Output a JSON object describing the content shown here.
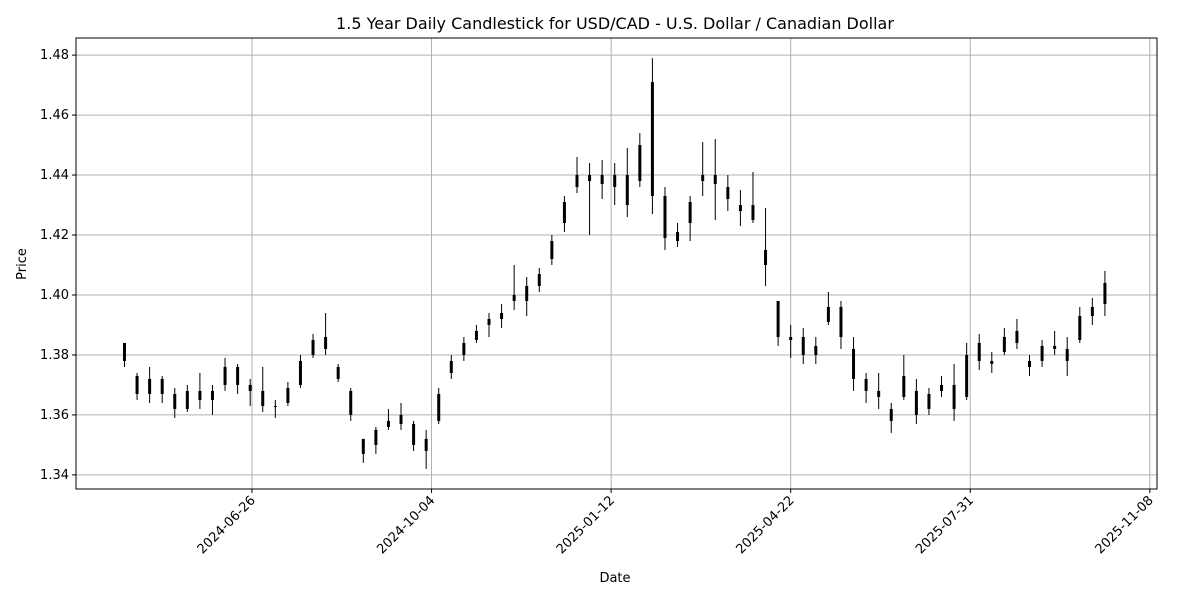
{
  "chart_data": {
    "type": "candlestick",
    "title": "1.5 Year Daily Candlestick for USD/CAD - U.S. Dollar / Canadian Dollar",
    "xlabel": "Date",
    "ylabel": "Price",
    "xlim": [
      "2024-03-20",
      "2025-11-12"
    ],
    "ylim": [
      1.3353,
      1.4857
    ],
    "grid": true,
    "colors": {
      "candle": "#000000",
      "grid": "#b0b0b0"
    },
    "x_ticks": [
      "2024-06-26",
      "2024-10-04",
      "2025-01-12",
      "2025-04-22",
      "2025-07-31",
      "2025-11-08"
    ],
    "y_ticks": [
      "1.34",
      "1.36",
      "1.38",
      "1.40",
      "1.42",
      "1.44",
      "1.46",
      "1.48"
    ],
    "ohlc_fields": [
      "date",
      "open",
      "high",
      "low",
      "close"
    ],
    "candles": [
      [
        "2024-04-16",
        1.384,
        1.384,
        1.376,
        1.378
      ],
      [
        "2024-04-23",
        1.373,
        1.374,
        1.365,
        1.367
      ],
      [
        "2024-04-30",
        1.367,
        1.376,
        1.364,
        1.372
      ],
      [
        "2024-05-07",
        1.372,
        1.373,
        1.364,
        1.367
      ],
      [
        "2024-05-14",
        1.367,
        1.369,
        1.359,
        1.362
      ],
      [
        "2024-05-21",
        1.362,
        1.37,
        1.361,
        1.368
      ],
      [
        "2024-05-28",
        1.368,
        1.374,
        1.362,
        1.365
      ],
      [
        "2024-06-04",
        1.365,
        1.37,
        1.36,
        1.368
      ],
      [
        "2024-06-11",
        1.37,
        1.379,
        1.368,
        1.376
      ],
      [
        "2024-06-18",
        1.376,
        1.377,
        1.367,
        1.37
      ],
      [
        "2024-06-25",
        1.37,
        1.372,
        1.363,
        1.368
      ],
      [
        "2024-07-02",
        1.368,
        1.376,
        1.361,
        1.363
      ],
      [
        "2024-07-09",
        1.363,
        1.365,
        1.359,
        1.363
      ],
      [
        "2024-07-16",
        1.364,
        1.371,
        1.363,
        1.369
      ],
      [
        "2024-07-23",
        1.37,
        1.38,
        1.369,
        1.378
      ],
      [
        "2024-07-30",
        1.38,
        1.387,
        1.379,
        1.385
      ],
      [
        "2024-08-06",
        1.386,
        1.394,
        1.38,
        1.382
      ],
      [
        "2024-08-13",
        1.376,
        1.377,
        1.371,
        1.372
      ],
      [
        "2024-08-20",
        1.368,
        1.369,
        1.358,
        1.36
      ],
      [
        "2024-08-27",
        1.352,
        1.352,
        1.344,
        1.347
      ],
      [
        "2024-09-03",
        1.35,
        1.356,
        1.347,
        1.355
      ],
      [
        "2024-09-10",
        1.356,
        1.362,
        1.355,
        1.358
      ],
      [
        "2024-09-17",
        1.357,
        1.364,
        1.355,
        1.36
      ],
      [
        "2024-09-24",
        1.357,
        1.358,
        1.348,
        1.35
      ],
      [
        "2024-10-01",
        1.348,
        1.355,
        1.342,
        1.352
      ],
      [
        "2024-10-08",
        1.358,
        1.369,
        1.357,
        1.367
      ],
      [
        "2024-10-15",
        1.374,
        1.38,
        1.372,
        1.378
      ],
      [
        "2024-10-22",
        1.38,
        1.386,
        1.378,
        1.384
      ],
      [
        "2024-10-29",
        1.385,
        1.39,
        1.384,
        1.388
      ],
      [
        "2024-11-05",
        1.39,
        1.394,
        1.386,
        1.392
      ],
      [
        "2024-11-12",
        1.392,
        1.397,
        1.389,
        1.394
      ],
      [
        "2024-11-19",
        1.4,
        1.41,
        1.395,
        1.398
      ],
      [
        "2024-11-26",
        1.398,
        1.406,
        1.393,
        1.403
      ],
      [
        "2024-12-03",
        1.403,
        1.409,
        1.401,
        1.407
      ],
      [
        "2024-12-10",
        1.412,
        1.42,
        1.41,
        1.418
      ],
      [
        "2024-12-17",
        1.424,
        1.433,
        1.421,
        1.431
      ],
      [
        "2024-12-24",
        1.436,
        1.446,
        1.434,
        1.44
      ],
      [
        "2024-12-31",
        1.438,
        1.444,
        1.42,
        1.44
      ],
      [
        "2025-01-07",
        1.437,
        1.445,
        1.432,
        1.44
      ],
      [
        "2025-01-14",
        1.44,
        1.444,
        1.43,
        1.436
      ],
      [
        "2025-01-21",
        1.43,
        1.449,
        1.426,
        1.44
      ],
      [
        "2025-01-28",
        1.438,
        1.454,
        1.436,
        1.45
      ],
      [
        "2025-02-04",
        1.471,
        1.479,
        1.427,
        1.433
      ],
      [
        "2025-02-11",
        1.433,
        1.436,
        1.415,
        1.419
      ],
      [
        "2025-02-18",
        1.418,
        1.424,
        1.416,
        1.421
      ],
      [
        "2025-02-25",
        1.424,
        1.433,
        1.418,
        1.431
      ],
      [
        "2025-03-04",
        1.438,
        1.451,
        1.433,
        1.44
      ],
      [
        "2025-03-11",
        1.44,
        1.452,
        1.425,
        1.437
      ],
      [
        "2025-03-18",
        1.436,
        1.44,
        1.428,
        1.432
      ],
      [
        "2025-03-25",
        1.43,
        1.435,
        1.423,
        1.428
      ],
      [
        "2025-04-01",
        1.43,
        1.441,
        1.424,
        1.425
      ],
      [
        "2025-04-08",
        1.415,
        1.429,
        1.403,
        1.41
      ],
      [
        "2025-04-15",
        1.398,
        1.398,
        1.383,
        1.386
      ],
      [
        "2025-04-22",
        1.385,
        1.39,
        1.379,
        1.386
      ],
      [
        "2025-04-29",
        1.386,
        1.389,
        1.377,
        1.38
      ],
      [
        "2025-05-06",
        1.38,
        1.386,
        1.377,
        1.383
      ],
      [
        "2025-05-13",
        1.391,
        1.401,
        1.39,
        1.396
      ],
      [
        "2025-05-20",
        1.396,
        1.398,
        1.382,
        1.386
      ],
      [
        "2025-05-27",
        1.382,
        1.386,
        1.368,
        1.372
      ],
      [
        "2025-06-03",
        1.372,
        1.374,
        1.364,
        1.368
      ],
      [
        "2025-06-10",
        1.368,
        1.374,
        1.362,
        1.366
      ],
      [
        "2025-06-17",
        1.362,
        1.364,
        1.354,
        1.358
      ],
      [
        "2025-06-24",
        1.366,
        1.38,
        1.365,
        1.373
      ],
      [
        "2025-07-01",
        1.368,
        1.372,
        1.357,
        1.36
      ],
      [
        "2025-07-08",
        1.362,
        1.369,
        1.36,
        1.367
      ],
      [
        "2025-07-15",
        1.368,
        1.373,
        1.366,
        1.37
      ],
      [
        "2025-07-22",
        1.37,
        1.377,
        1.358,
        1.362
      ],
      [
        "2025-07-29",
        1.366,
        1.384,
        1.365,
        1.38
      ],
      [
        "2025-08-05",
        1.384,
        1.387,
        1.375,
        1.378
      ],
      [
        "2025-08-12",
        1.378,
        1.381,
        1.374,
        1.377
      ],
      [
        "2025-08-19",
        1.381,
        1.389,
        1.38,
        1.386
      ],
      [
        "2025-08-26",
        1.388,
        1.392,
        1.382,
        1.384
      ],
      [
        "2025-09-02",
        1.378,
        1.38,
        1.373,
        1.376
      ],
      [
        "2025-09-09",
        1.378,
        1.385,
        1.376,
        1.383
      ],
      [
        "2025-09-16",
        1.383,
        1.388,
        1.38,
        1.382
      ],
      [
        "2025-09-23",
        1.378,
        1.386,
        1.373,
        1.382
      ],
      [
        "2025-09-30",
        1.385,
        1.396,
        1.384,
        1.393
      ],
      [
        "2025-10-07",
        1.393,
        1.399,
        1.39,
        1.396
      ],
      [
        "2025-10-14",
        1.397,
        1.408,
        1.393,
        1.404
      ]
    ]
  }
}
